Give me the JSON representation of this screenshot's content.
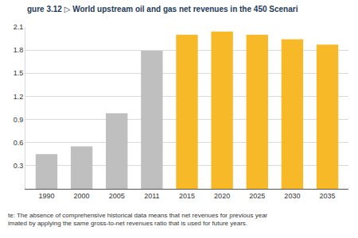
{
  "chart_data": {
    "type": "bar",
    "title": "gure 3.12 ▷ World upstream oil and gas net revenues in the 450 Scenari",
    "categories": [
      "1990",
      "2000",
      "2005",
      "2011",
      "2015",
      "2020",
      "2025",
      "2030",
      "2035"
    ],
    "values": [
      0.45,
      0.55,
      0.98,
      1.79,
      2.0,
      2.04,
      2.0,
      1.94,
      1.87
    ],
    "colors": [
      "#bfbfbf",
      "#bfbfbf",
      "#bfbfbf",
      "#bfbfbf",
      "#f7b928",
      "#f7b928",
      "#f7b928",
      "#f7b928",
      "#f7b928"
    ],
    "ylim": [
      0,
      2.1
    ],
    "yticks": [
      0.3,
      0.6,
      0.9,
      1.2,
      1.5,
      1.8,
      2.1
    ],
    "grid": true,
    "annotations": [
      "te: The absence of comprehensive historical data means that net revenues for previous year",
      "imated by applying the same gross-to-net revenues ratio that is used for future years."
    ]
  }
}
